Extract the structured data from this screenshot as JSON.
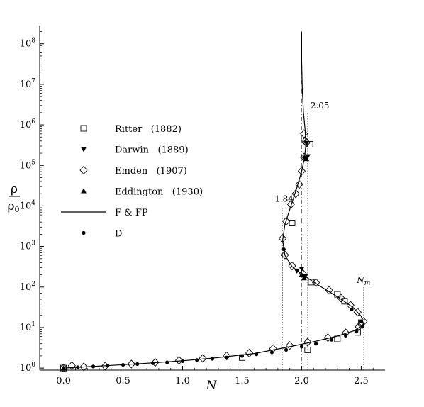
{
  "chart_data": {
    "type": "scatter",
    "xlabel": "N",
    "ylabel_num": "ρ",
    "ylabel_den": "ρ",
    "ylabel_sub": "0",
    "xlim": [
      -0.2,
      2.7
    ],
    "ylim_log10": [
      -0.05,
      8.45
    ],
    "yscale": "log",
    "grid": false,
    "legend_position": "left-center",
    "x_ticks": [
      "0.0",
      "0.5",
      "1.0",
      "1.5",
      "2.0",
      "2.5"
    ],
    "x_tick_values": [
      0,
      0.5,
      1.0,
      1.5,
      2.0,
      2.5
    ],
    "y_ticks": [
      {
        "base": "10",
        "exp": "0",
        "value": 0
      },
      {
        "base": "10",
        "exp": "1",
        "value": 1
      },
      {
        "base": "10",
        "exp": "2",
        "value": 2
      },
      {
        "base": "10",
        "exp": "3",
        "value": 3
      },
      {
        "base": "10",
        "exp": "4",
        "value": 4
      },
      {
        "base": "10",
        "exp": "5",
        "value": 5
      },
      {
        "base": "10",
        "exp": "6",
        "value": 6
      },
      {
        "base": "10",
        "exp": "7",
        "value": 7
      },
      {
        "base": "10",
        "exp": "8",
        "value": 8
      }
    ],
    "vlines": [
      {
        "x": 1.84,
        "label": "1.84",
        "style": "dotted",
        "ymax_log10": 4.0
      },
      {
        "x": 2.0,
        "label": "",
        "style": "dashdot",
        "ymax_log10": 8.3
      },
      {
        "x": 2.05,
        "label": "2.05",
        "style": "dotted",
        "ymax_log10": 6.3
      },
      {
        "x": 2.52,
        "label": "N",
        "label_sub": "m",
        "style": "dotted",
        "ymax_log10": 2.0
      }
    ],
    "series": [
      {
        "name": "Ritter   (1882)",
        "marker": "square",
        "points": [
          [
            0.0,
            0.0
          ],
          [
            1.5,
            0.26
          ],
          [
            2.05,
            0.45
          ],
          [
            2.3,
            0.72
          ],
          [
            2.47,
            0.88
          ],
          [
            2.5,
            1.12
          ],
          [
            2.36,
            1.65
          ],
          [
            2.3,
            1.82
          ],
          [
            2.08,
            2.12
          ],
          [
            1.92,
            3.58
          ],
          [
            2.07,
            5.52
          ]
        ]
      },
      {
        "name": "Darwin   (1889)",
        "marker": "triangle-down",
        "points": [
          [
            2.0,
            2.45
          ],
          [
            2.03,
            2.27
          ],
          [
            2.05,
            5.22
          ],
          [
            2.04,
            5.55
          ],
          [
            1.96,
            2.4
          ]
        ]
      },
      {
        "name": "Emden   (1907)",
        "marker": "diamond",
        "points": [
          [
            0.0,
            0.0
          ],
          [
            0.07,
            0.06
          ],
          [
            0.17,
            0.03
          ],
          [
            0.35,
            0.05
          ],
          [
            0.57,
            0.1
          ],
          [
            0.77,
            0.14
          ],
          [
            0.97,
            0.19
          ],
          [
            1.17,
            0.24
          ],
          [
            1.37,
            0.3
          ],
          [
            1.56,
            0.37
          ],
          [
            1.76,
            0.48
          ],
          [
            1.9,
            0.56
          ],
          [
            2.05,
            0.64
          ],
          [
            2.22,
            0.75
          ],
          [
            2.37,
            0.87
          ],
          [
            2.48,
            1.02
          ],
          [
            2.52,
            1.15
          ],
          [
            2.47,
            1.38
          ],
          [
            2.41,
            1.55
          ],
          [
            2.33,
            1.73
          ],
          [
            2.23,
            1.92
          ],
          [
            2.12,
            2.11
          ],
          [
            2.01,
            2.33
          ],
          [
            1.92,
            2.52
          ],
          [
            1.86,
            2.79
          ],
          [
            1.84,
            3.2
          ],
          [
            1.87,
            3.62
          ],
          [
            1.91,
            4.04
          ],
          [
            1.95,
            4.3
          ],
          [
            1.98,
            4.53
          ],
          [
            2.0,
            4.86
          ],
          [
            2.02,
            5.2
          ],
          [
            2.03,
            5.6
          ],
          [
            2.02,
            5.78
          ],
          [
            2.04,
            5.56
          ]
        ]
      },
      {
        "name": "Eddington   (1930)",
        "marker": "triangle-up",
        "points": [
          [
            2.0,
            2.3
          ],
          [
            2.02,
            2.22
          ],
          [
            2.04,
            5.16
          ]
        ]
      },
      {
        "name": "F & FP",
        "marker": "line",
        "points": [
          [
            0.0,
            0.0
          ],
          [
            0.3,
            0.05
          ],
          [
            0.7,
            0.12
          ],
          [
            1.0,
            0.18
          ],
          [
            1.3,
            0.26
          ],
          [
            1.6,
            0.36
          ],
          [
            1.85,
            0.5
          ],
          [
            2.1,
            0.65
          ],
          [
            2.3,
            0.79
          ],
          [
            2.44,
            0.92
          ],
          [
            2.52,
            1.07
          ],
          [
            2.5,
            1.28
          ],
          [
            2.43,
            1.5
          ],
          [
            2.3,
            1.76
          ],
          [
            2.15,
            2.03
          ],
          [
            2.02,
            2.28
          ],
          [
            1.92,
            2.5
          ],
          [
            1.86,
            2.78
          ],
          [
            1.84,
            3.15
          ],
          [
            1.86,
            3.55
          ],
          [
            1.91,
            4.0
          ],
          [
            1.96,
            4.45
          ],
          [
            2.0,
            4.85
          ],
          [
            2.025,
            5.2
          ],
          [
            2.035,
            5.5
          ],
          [
            2.03,
            5.85
          ],
          [
            2.015,
            6.3
          ],
          [
            2.005,
            6.9
          ],
          [
            2.0,
            7.6
          ],
          [
            2.0,
            8.3
          ]
        ]
      },
      {
        "name": "D",
        "marker": "circle",
        "points": [
          [
            0.0,
            0.0
          ],
          [
            0.12,
            0.02
          ],
          [
            0.25,
            0.04
          ],
          [
            0.37,
            0.06
          ],
          [
            0.5,
            0.08
          ],
          [
            0.62,
            0.1
          ],
          [
            0.75,
            0.12
          ],
          [
            0.87,
            0.14
          ],
          [
            1.0,
            0.17
          ],
          [
            1.12,
            0.2
          ],
          [
            1.25,
            0.23
          ],
          [
            1.37,
            0.26
          ],
          [
            1.5,
            0.3
          ],
          [
            1.62,
            0.34
          ],
          [
            1.75,
            0.39
          ],
          [
            1.87,
            0.45
          ],
          [
            2.0,
            0.53
          ],
          [
            2.12,
            0.6
          ],
          [
            2.25,
            0.7
          ],
          [
            2.37,
            0.8
          ],
          [
            2.46,
            0.9
          ],
          [
            2.51,
            1.02
          ],
          [
            2.5,
            1.15
          ],
          [
            2.42,
            1.45
          ],
          [
            1.85,
            2.93
          ],
          [
            2.02,
            5.2
          ]
        ]
      }
    ]
  }
}
